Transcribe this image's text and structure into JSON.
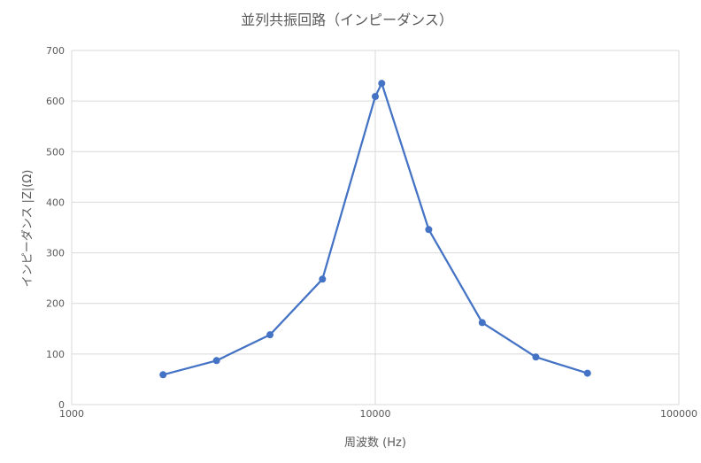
{
  "chart_data": {
    "type": "line",
    "title": "並列共振回路（インピーダンス）",
    "xlabel": "周波数 (Hz)",
    "ylabel": "インピーダンス |Z|(Ω)",
    "x_scale": "log",
    "xlim": [
      1000,
      100000
    ],
    "ylim": [
      0,
      700
    ],
    "x_ticks": [
      1000,
      10000,
      100000
    ],
    "x_tick_labels": [
      "1000",
      "10000",
      "100000"
    ],
    "y_ticks": [
      0,
      100,
      200,
      300,
      400,
      500,
      600,
      700
    ],
    "y_tick_labels": [
      "0",
      "100",
      "200",
      "300",
      "400",
      "500",
      "600",
      "700"
    ],
    "grid": true,
    "legend": "none",
    "color": "#4472c4",
    "series": [
      {
        "x": [
          2000,
          3000,
          4500,
          6700,
          10000,
          10500,
          15000,
          22500,
          33800,
          50000
        ],
        "y": [
          59,
          87,
          138,
          248,
          609,
          635,
          346,
          162,
          94,
          62
        ]
      }
    ]
  }
}
